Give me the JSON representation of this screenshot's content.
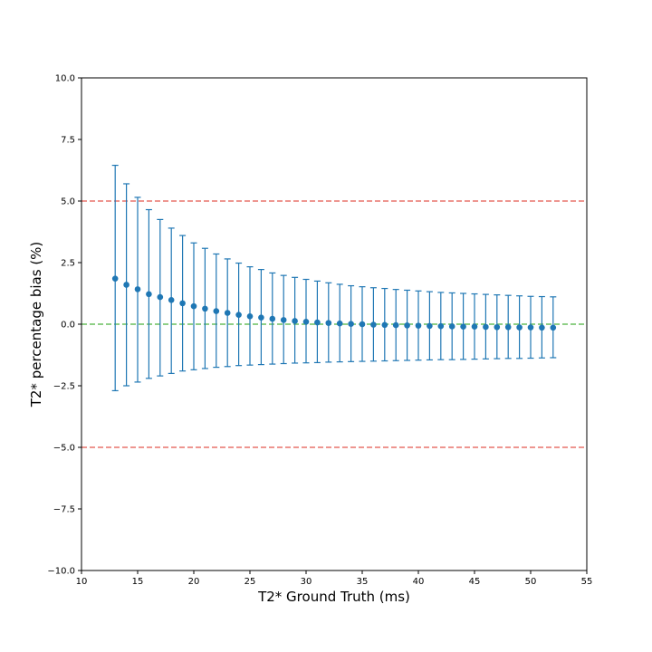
{
  "chart_data": {
    "type": "scatter",
    "title": "",
    "xlabel": "T2* Ground Truth (ms)",
    "ylabel": "T2* percentage bias (%)",
    "xlim": [
      10,
      55
    ],
    "ylim": [
      -10,
      10
    ],
    "xticks": [
      10,
      15,
      20,
      25,
      30,
      35,
      40,
      45,
      50,
      55
    ],
    "xtick_labels": [
      "10",
      "15",
      "20",
      "25",
      "30",
      "35",
      "40",
      "45",
      "50",
      "55"
    ],
    "yticks": [
      -10,
      -7.5,
      -5,
      -2.5,
      0,
      2.5,
      5,
      7.5,
      10
    ],
    "ytick_labels": [
      "−10.0",
      "−7.5",
      "−5.0",
      "−2.5",
      "0.0",
      "2.5",
      "5.0",
      "7.5",
      "10.0"
    ],
    "grid": false,
    "series": [
      {
        "color": "#1f77b4",
        "marker": "circle",
        "errorbars": true,
        "points": [
          {
            "x": 13,
            "y": 1.85,
            "lower": -2.7,
            "upper": 6.45
          },
          {
            "x": 14,
            "y": 1.6,
            "lower": -2.5,
            "upper": 5.7
          },
          {
            "x": 15,
            "y": 1.42,
            "lower": -2.35,
            "upper": 5.15
          },
          {
            "x": 16,
            "y": 1.22,
            "lower": -2.2,
            "upper": 4.65
          },
          {
            "x": 17,
            "y": 1.1,
            "lower": -2.1,
            "upper": 4.25
          },
          {
            "x": 18,
            "y": 0.98,
            "lower": -2.0,
            "upper": 3.9
          },
          {
            "x": 19,
            "y": 0.85,
            "lower": -1.9,
            "upper": 3.6
          },
          {
            "x": 20,
            "y": 0.73,
            "lower": -1.85,
            "upper": 3.3
          },
          {
            "x": 21,
            "y": 0.63,
            "lower": -1.8,
            "upper": 3.08
          },
          {
            "x": 22,
            "y": 0.53,
            "lower": -1.75,
            "upper": 2.85
          },
          {
            "x": 23,
            "y": 0.46,
            "lower": -1.72,
            "upper": 2.65
          },
          {
            "x": 24,
            "y": 0.38,
            "lower": -1.68,
            "upper": 2.48
          },
          {
            "x": 25,
            "y": 0.32,
            "lower": -1.66,
            "upper": 2.33
          },
          {
            "x": 26,
            "y": 0.27,
            "lower": -1.64,
            "upper": 2.22
          },
          {
            "x": 27,
            "y": 0.22,
            "lower": -1.62,
            "upper": 2.08
          },
          {
            "x": 28,
            "y": 0.17,
            "lower": -1.6,
            "upper": 1.98
          },
          {
            "x": 29,
            "y": 0.13,
            "lower": -1.58,
            "upper": 1.9
          },
          {
            "x": 30,
            "y": 0.1,
            "lower": -1.57,
            "upper": 1.82
          },
          {
            "x": 31,
            "y": 0.07,
            "lower": -1.56,
            "upper": 1.75
          },
          {
            "x": 32,
            "y": 0.05,
            "lower": -1.54,
            "upper": 1.68
          },
          {
            "x": 33,
            "y": 0.03,
            "lower": -1.53,
            "upper": 1.62
          },
          {
            "x": 34,
            "y": 0.01,
            "lower": -1.52,
            "upper": 1.56
          },
          {
            "x": 35,
            "y": 0.0,
            "lower": -1.51,
            "upper": 1.52
          },
          {
            "x": 36,
            "y": -0.02,
            "lower": -1.5,
            "upper": 1.48
          },
          {
            "x": 37,
            "y": -0.03,
            "lower": -1.49,
            "upper": 1.45
          },
          {
            "x": 38,
            "y": -0.04,
            "lower": -1.48,
            "upper": 1.41
          },
          {
            "x": 39,
            "y": -0.05,
            "lower": -1.47,
            "upper": 1.38
          },
          {
            "x": 40,
            "y": -0.06,
            "lower": -1.46,
            "upper": 1.35
          },
          {
            "x": 41,
            "y": -0.07,
            "lower": -1.45,
            "upper": 1.32
          },
          {
            "x": 42,
            "y": -0.08,
            "lower": -1.44,
            "upper": 1.29
          },
          {
            "x": 43,
            "y": -0.09,
            "lower": -1.44,
            "upper": 1.27
          },
          {
            "x": 44,
            "y": -0.1,
            "lower": -1.43,
            "upper": 1.25
          },
          {
            "x": 45,
            "y": -0.1,
            "lower": -1.42,
            "upper": 1.23
          },
          {
            "x": 46,
            "y": -0.11,
            "lower": -1.41,
            "upper": 1.21
          },
          {
            "x": 47,
            "y": -0.12,
            "lower": -1.4,
            "upper": 1.19
          },
          {
            "x": 48,
            "y": -0.12,
            "lower": -1.39,
            "upper": 1.17
          },
          {
            "x": 49,
            "y": -0.13,
            "lower": -1.39,
            "upper": 1.15
          },
          {
            "x": 50,
            "y": -0.13,
            "lower": -1.38,
            "upper": 1.13
          },
          {
            "x": 51,
            "y": -0.14,
            "lower": -1.37,
            "upper": 1.12
          },
          {
            "x": 52,
            "y": -0.14,
            "lower": -1.36,
            "upper": 1.11
          }
        ]
      }
    ],
    "reference_lines": [
      {
        "y": 5,
        "color": "#e8746b",
        "style": "dashed"
      },
      {
        "y": -5,
        "color": "#e8746b",
        "style": "dashed"
      },
      {
        "y": 0,
        "color": "#6abf5e",
        "style": "dashed"
      }
    ]
  }
}
